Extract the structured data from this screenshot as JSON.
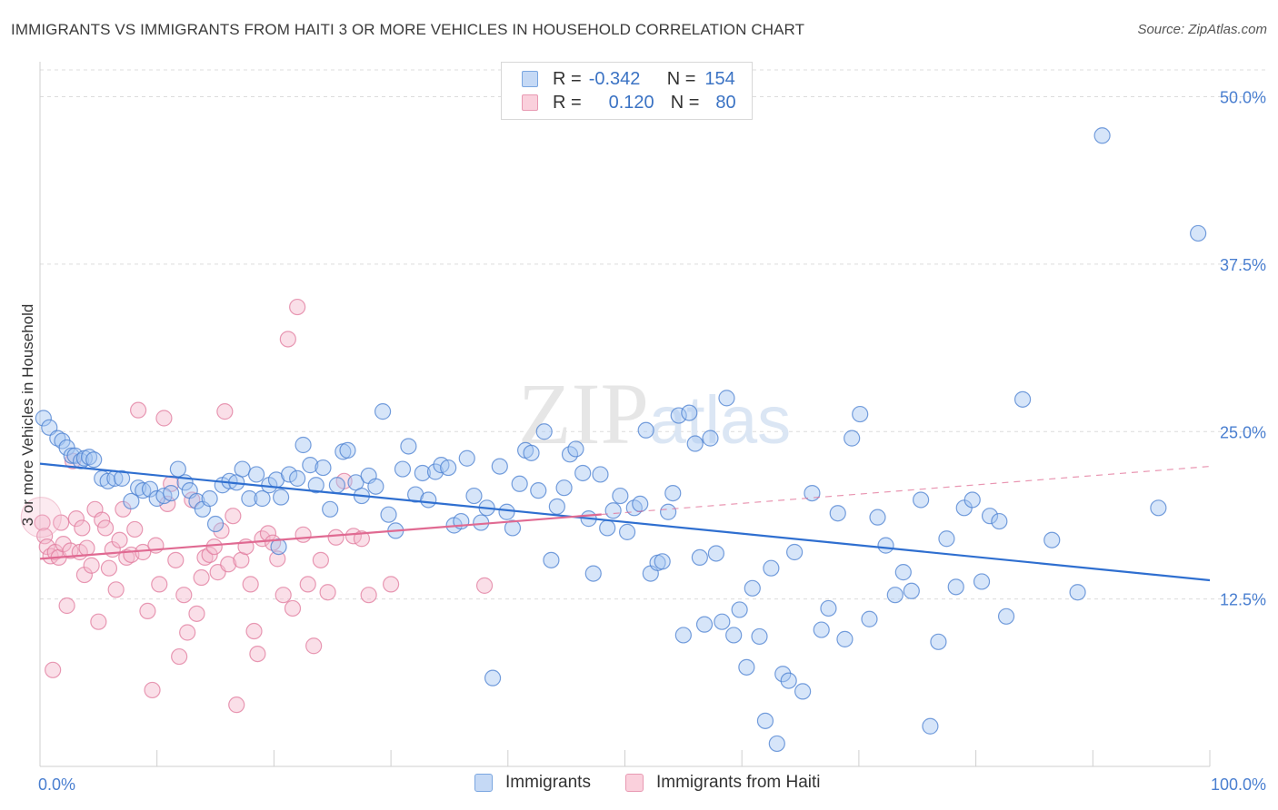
{
  "title": "IMMIGRANTS VS IMMIGRANTS FROM HAITI 3 OR MORE VEHICLES IN HOUSEHOLD CORRELATION CHART",
  "source": "Source: ZipAtlas.com",
  "watermark": "ZIPatlas",
  "legend": {
    "rows": [
      {
        "r_label": "R =",
        "r_value": "-0.342",
        "n_label": "N =",
        "n_value": "154",
        "color": "#7aa6e0",
        "fill": "#c5d9f5"
      },
      {
        "r_label": "R =",
        "r_value": "0.120",
        "n_label": "N =",
        "n_value": "80",
        "color": "#e899b2",
        "fill": "#fad0dc"
      }
    ]
  },
  "bottom_legend": [
    "Immigrants",
    "Immigrants from Haiti"
  ],
  "chart_data": {
    "type": "scatter",
    "title": "IMMIGRANTS VS IMMIGRANTS FROM HAITI 3 OR MORE VEHICLES IN HOUSEHOLD CORRELATION CHART",
    "xlabel": "",
    "ylabel": "3 or more Vehicles in Household",
    "xlim": [
      0,
      100
    ],
    "ylim": [
      0,
      52
    ],
    "x_tick_labels": [
      "0.0%",
      "100.0%"
    ],
    "y_ticks": [
      12.5,
      25.0,
      37.5,
      50.0
    ],
    "y_tick_labels": [
      "12.5%",
      "25.0%",
      "37.5%",
      "50.0%"
    ],
    "grid": "horizontal dashed",
    "legend_position": "top-center",
    "series": [
      {
        "name": "Immigrants",
        "color": "#4a7fd0",
        "fill": "rgba(165,198,242,0.45)",
        "trend": {
          "x": [
            0,
            100
          ],
          "y": [
            22.6,
            13.9
          ],
          "style": "solid",
          "color": "#2f6fd0"
        },
        "points": [
          [
            0.3,
            26.0
          ],
          [
            0.8,
            25.3
          ],
          [
            1.5,
            24.5
          ],
          [
            1.9,
            24.3
          ],
          [
            2.3,
            23.8
          ],
          [
            2.7,
            23.2
          ],
          [
            3.0,
            23.2
          ],
          [
            3.5,
            22.8
          ],
          [
            3.8,
            23.0
          ],
          [
            4.2,
            23.1
          ],
          [
            4.6,
            22.9
          ],
          [
            5.3,
            21.5
          ],
          [
            5.8,
            21.3
          ],
          [
            6.4,
            21.5
          ],
          [
            7.0,
            21.5
          ],
          [
            7.8,
            19.8
          ],
          [
            8.4,
            20.8
          ],
          [
            8.8,
            20.6
          ],
          [
            9.4,
            20.7
          ],
          [
            10.0,
            20.0
          ],
          [
            10.6,
            20.2
          ],
          [
            11.2,
            20.4
          ],
          [
            11.8,
            22.2
          ],
          [
            12.4,
            21.2
          ],
          [
            12.8,
            20.6
          ],
          [
            13.4,
            19.8
          ],
          [
            13.9,
            19.2
          ],
          [
            14.5,
            20.0
          ],
          [
            15.0,
            18.1
          ],
          [
            15.6,
            21.0
          ],
          [
            16.2,
            21.3
          ],
          [
            16.8,
            21.2
          ],
          [
            17.3,
            22.2
          ],
          [
            17.9,
            20.0
          ],
          [
            18.5,
            21.8
          ],
          [
            19.0,
            20.0
          ],
          [
            19.6,
            21.0
          ],
          [
            20.2,
            21.4
          ],
          [
            20.6,
            20.1
          ],
          [
            20.4,
            16.4
          ],
          [
            21.3,
            21.8
          ],
          [
            22.0,
            21.5
          ],
          [
            22.5,
            24.0
          ],
          [
            23.1,
            22.5
          ],
          [
            23.6,
            21.0
          ],
          [
            24.2,
            22.3
          ],
          [
            24.8,
            19.2
          ],
          [
            25.4,
            21.0
          ],
          [
            25.9,
            23.5
          ],
          [
            26.3,
            23.6
          ],
          [
            27.0,
            21.2
          ],
          [
            27.5,
            20.2
          ],
          [
            28.1,
            21.7
          ],
          [
            28.7,
            20.9
          ],
          [
            29.3,
            26.5
          ],
          [
            29.8,
            18.8
          ],
          [
            30.4,
            17.6
          ],
          [
            31.0,
            22.2
          ],
          [
            31.5,
            23.9
          ],
          [
            32.1,
            20.3
          ],
          [
            32.7,
            21.9
          ],
          [
            33.2,
            19.9
          ],
          [
            33.8,
            22.0
          ],
          [
            34.3,
            22.5
          ],
          [
            34.9,
            22.3
          ],
          [
            35.4,
            18.0
          ],
          [
            36.0,
            18.3
          ],
          [
            36.5,
            23.0
          ],
          [
            37.1,
            20.2
          ],
          [
            37.7,
            18.2
          ],
          [
            38.2,
            19.3
          ],
          [
            38.7,
            6.6
          ],
          [
            39.3,
            22.4
          ],
          [
            39.9,
            19.0
          ],
          [
            40.4,
            17.8
          ],
          [
            41.0,
            21.1
          ],
          [
            41.5,
            23.6
          ],
          [
            42.0,
            23.4
          ],
          [
            42.6,
            20.6
          ],
          [
            43.1,
            25.0
          ],
          [
            43.7,
            15.4
          ],
          [
            44.2,
            19.4
          ],
          [
            44.8,
            20.8
          ],
          [
            45.3,
            23.3
          ],
          [
            45.8,
            23.7
          ],
          [
            46.4,
            21.9
          ],
          [
            46.9,
            18.5
          ],
          [
            47.3,
            14.4
          ],
          [
            47.9,
            21.8
          ],
          [
            48.5,
            17.8
          ],
          [
            49.0,
            19.1
          ],
          [
            49.6,
            20.2
          ],
          [
            50.2,
            17.5
          ],
          [
            50.8,
            19.3
          ],
          [
            51.3,
            19.6
          ],
          [
            51.8,
            25.1
          ],
          [
            52.2,
            14.4
          ],
          [
            52.8,
            15.2
          ],
          [
            53.2,
            15.3
          ],
          [
            53.7,
            19.0
          ],
          [
            54.1,
            20.4
          ],
          [
            54.6,
            26.2
          ],
          [
            55.0,
            9.8
          ],
          [
            55.5,
            26.4
          ],
          [
            56.0,
            24.1
          ],
          [
            56.4,
            15.6
          ],
          [
            56.8,
            10.6
          ],
          [
            57.3,
            24.5
          ],
          [
            57.8,
            15.9
          ],
          [
            58.3,
            10.8
          ],
          [
            58.7,
            27.5
          ],
          [
            59.3,
            9.8
          ],
          [
            59.8,
            11.7
          ],
          [
            60.4,
            7.4
          ],
          [
            60.9,
            13.3
          ],
          [
            61.5,
            9.7
          ],
          [
            62.0,
            3.4
          ],
          [
            62.5,
            14.8
          ],
          [
            63.0,
            1.7
          ],
          [
            63.5,
            6.9
          ],
          [
            64.0,
            6.4
          ],
          [
            64.5,
            16.0
          ],
          [
            65.2,
            5.6
          ],
          [
            66.0,
            20.4
          ],
          [
            66.8,
            10.2
          ],
          [
            67.4,
            11.8
          ],
          [
            68.2,
            18.9
          ],
          [
            68.8,
            9.5
          ],
          [
            69.4,
            24.5
          ],
          [
            70.1,
            26.3
          ],
          [
            70.9,
            11.0
          ],
          [
            71.6,
            18.6
          ],
          [
            72.3,
            16.5
          ],
          [
            73.1,
            12.8
          ],
          [
            73.8,
            14.5
          ],
          [
            74.5,
            13.1
          ],
          [
            75.3,
            19.9
          ],
          [
            76.1,
            3.0
          ],
          [
            76.8,
            9.3
          ],
          [
            77.5,
            17.0
          ],
          [
            78.3,
            13.4
          ],
          [
            79.0,
            19.3
          ],
          [
            79.7,
            19.9
          ],
          [
            80.5,
            13.8
          ],
          [
            81.2,
            18.7
          ],
          [
            82.0,
            18.3
          ],
          [
            82.6,
            11.2
          ],
          [
            84.0,
            27.4
          ],
          [
            86.5,
            16.9
          ],
          [
            88.7,
            13.0
          ],
          [
            90.8,
            47.1
          ],
          [
            95.6,
            19.3
          ],
          [
            99.0,
            39.8
          ]
        ]
      },
      {
        "name": "Immigrants from Haiti",
        "color": "#e07a9c",
        "fill": "rgba(245,184,204,0.45)",
        "trend": {
          "x": [
            0,
            100
          ],
          "y": [
            15.5,
            22.4
          ],
          "style": "solid-to-dashed",
          "solid_until": 48,
          "color": "#e06a92"
        },
        "points": [
          [
            0.2,
            18.2
          ],
          [
            0.4,
            17.2
          ],
          [
            0.6,
            16.4
          ],
          [
            0.9,
            15.7
          ],
          [
            1.1,
            7.2
          ],
          [
            1.3,
            16.0
          ],
          [
            1.6,
            15.6
          ],
          [
            1.8,
            18.2
          ],
          [
            2.0,
            16.6
          ],
          [
            2.3,
            12.0
          ],
          [
            2.6,
            16.1
          ],
          [
            2.8,
            22.8
          ],
          [
            3.1,
            18.5
          ],
          [
            3.4,
            16.0
          ],
          [
            3.6,
            17.8
          ],
          [
            3.8,
            14.3
          ],
          [
            4.0,
            16.3
          ],
          [
            4.4,
            15.0
          ],
          [
            4.7,
            19.2
          ],
          [
            5.0,
            10.8
          ],
          [
            5.3,
            18.4
          ],
          [
            5.6,
            17.8
          ],
          [
            5.9,
            14.8
          ],
          [
            6.2,
            16.2
          ],
          [
            6.5,
            13.2
          ],
          [
            6.8,
            16.9
          ],
          [
            7.1,
            19.2
          ],
          [
            7.4,
            15.6
          ],
          [
            7.8,
            15.8
          ],
          [
            8.1,
            17.7
          ],
          [
            8.4,
            26.6
          ],
          [
            8.8,
            16.0
          ],
          [
            9.2,
            11.6
          ],
          [
            9.6,
            5.7
          ],
          [
            9.9,
            16.5
          ],
          [
            10.2,
            13.6
          ],
          [
            10.6,
            26.0
          ],
          [
            10.9,
            19.6
          ],
          [
            11.2,
            21.1
          ],
          [
            11.6,
            15.4
          ],
          [
            11.9,
            8.2
          ],
          [
            12.3,
            12.8
          ],
          [
            12.6,
            10.0
          ],
          [
            13.0,
            19.9
          ],
          [
            13.4,
            11.4
          ],
          [
            13.8,
            14.1
          ],
          [
            14.1,
            15.6
          ],
          [
            14.5,
            15.8
          ],
          [
            14.9,
            16.4
          ],
          [
            15.2,
            14.5
          ],
          [
            15.5,
            17.6
          ],
          [
            15.8,
            26.5
          ],
          [
            16.1,
            15.1
          ],
          [
            16.5,
            18.7
          ],
          [
            16.8,
            4.6
          ],
          [
            17.2,
            15.4
          ],
          [
            17.6,
            16.4
          ],
          [
            18.0,
            13.6
          ],
          [
            18.3,
            10.1
          ],
          [
            18.6,
            8.4
          ],
          [
            19.0,
            17.0
          ],
          [
            19.5,
            17.4
          ],
          [
            19.9,
            16.7
          ],
          [
            20.3,
            15.5
          ],
          [
            20.8,
            12.8
          ],
          [
            21.2,
            31.9
          ],
          [
            21.6,
            11.8
          ],
          [
            22.0,
            34.3
          ],
          [
            22.5,
            17.3
          ],
          [
            22.9,
            13.6
          ],
          [
            23.4,
            9.0
          ],
          [
            24.0,
            15.4
          ],
          [
            24.6,
            13.0
          ],
          [
            25.3,
            17.1
          ],
          [
            26.0,
            21.3
          ],
          [
            26.8,
            17.2
          ],
          [
            27.5,
            17.0
          ],
          [
            28.1,
            12.8
          ],
          [
            30.0,
            13.6
          ],
          [
            38.0,
            13.5
          ]
        ]
      }
    ]
  }
}
